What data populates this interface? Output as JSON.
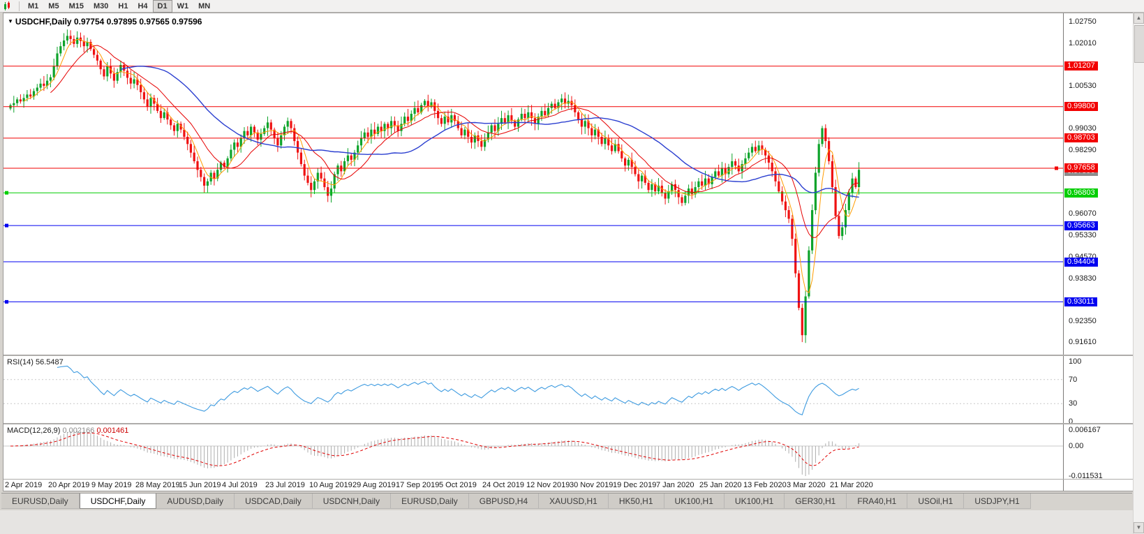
{
  "toolbar": {
    "timeframes": [
      {
        "label": "M1",
        "active": false
      },
      {
        "label": "M5",
        "active": false
      },
      {
        "label": "M15",
        "active": false
      },
      {
        "label": "M30",
        "active": false
      },
      {
        "label": "H1",
        "active": false
      },
      {
        "label": "H4",
        "active": false
      },
      {
        "label": "D1",
        "active": true
      },
      {
        "label": "W1",
        "active": false
      },
      {
        "label": "MN",
        "active": false
      }
    ]
  },
  "chart": {
    "symbol_period": "USDCHF,Daily",
    "ohlc": "0.97754 0.97895 0.97565 0.97596"
  },
  "price_axis": {
    "ticks": [
      {
        "value": 1.0275,
        "label": "1.02750"
      },
      {
        "value": 1.0201,
        "label": "1.02010"
      },
      {
        "value": 1.0053,
        "label": "1.00530"
      },
      {
        "value": 0.9903,
        "label": "0.99030"
      },
      {
        "value": 0.9829,
        "label": "0.98290"
      },
      {
        "value": 0.9607,
        "label": "0.96070"
      },
      {
        "value": 0.9533,
        "label": "0.95330"
      },
      {
        "value": 0.9457,
        "label": "0.94570"
      },
      {
        "value": 0.9383,
        "label": "0.93830"
      },
      {
        "value": 0.9235,
        "label": "0.92350"
      },
      {
        "value": 0.9161,
        "label": "0.91610"
      }
    ],
    "lines": [
      {
        "value": 1.01207,
        "label": "1.01207",
        "color": "#f20000"
      },
      {
        "value": 0.998,
        "label": "0.99800",
        "color": "#f20000"
      },
      {
        "value": 0.98703,
        "label": "0.98703",
        "color": "#f20000"
      },
      {
        "value": 0.97658,
        "label": "0.97658",
        "color": "#f20000",
        "handle": "right"
      },
      {
        "value": 0.96803,
        "label": "0.96803",
        "color": "#00ce00",
        "handle": "left"
      },
      {
        "value": 0.95663,
        "label": "0.95663",
        "color": "#0000f0",
        "handle": "left"
      },
      {
        "value": 0.94404,
        "label": "0.94404",
        "color": "#0000f0"
      },
      {
        "value": 0.93011,
        "label": "0.93011",
        "color": "#0000f0",
        "handle": "left"
      }
    ],
    "current": {
      "value": 0.97596,
      "label": "0.97596",
      "color": "#8c8c8c"
    }
  },
  "dates": [
    "2 Apr 2019",
    "20 Apr 2019",
    "9 May 2019",
    "28 May 2019",
    "15 Jun 2019",
    "4 Jul 2019",
    "23 Jul 2019",
    "10 Aug 2019",
    "29 Aug 2019",
    "17 Sep 2019",
    "5 Oct 2019",
    "24 Oct 2019",
    "12 Nov 2019",
    "30 Nov 2019",
    "19 Dec 2019",
    "7 Jan 2020",
    "25 Jan 2020",
    "13 Feb 2020",
    "3 Mar 2020",
    "21 Mar 2020"
  ],
  "indicators": {
    "rsi": {
      "label": "RSI(14)",
      "value": "56.5487",
      "axis": [
        {
          "value": 100,
          "label": "100"
        },
        {
          "value": 70,
          "label": "70"
        },
        {
          "value": 30,
          "label": "30"
        },
        {
          "value": 0,
          "label": "0"
        }
      ],
      "levels": [
        70,
        30
      ],
      "color": "#3e9be0"
    },
    "macd": {
      "label": "MACD(12,26,9)",
      "value_main": "0.002166",
      "value_signal": "0.001461",
      "axis_top": "0.006167",
      "axis_zero": "0.00",
      "axis_bottom": "-0.011531",
      "range": [
        -0.011531,
        0.006167
      ],
      "hist_color": "#adadad",
      "signal_color": "#e00000"
    }
  },
  "tabs": [
    {
      "label": "EURUSD,Daily",
      "active": false
    },
    {
      "label": "USDCHF,Daily",
      "active": true
    },
    {
      "label": "AUDUSD,Daily",
      "active": false
    },
    {
      "label": "USDCAD,Daily",
      "active": false
    },
    {
      "label": "USDCNH,Daily",
      "active": false
    },
    {
      "label": "EURUSD,Daily",
      "active": false
    },
    {
      "label": "GBPUSD,H4",
      "active": false
    },
    {
      "label": "XAUUSD,H1",
      "active": false
    },
    {
      "label": "HK50,H1",
      "active": false
    },
    {
      "label": "UK100,H1",
      "active": false
    },
    {
      "label": "UK100,H1",
      "active": false
    },
    {
      "label": "GER30,H1",
      "active": false
    },
    {
      "label": "FRA40,H1",
      "active": false
    },
    {
      "label": "USOil,H1",
      "active": false
    },
    {
      "label": "USDJPY,H1",
      "active": false
    }
  ],
  "chart_data": {
    "type": "candlestick",
    "title": "USDCHF,Daily",
    "y_range": [
      0.912,
      1.029
    ],
    "bars_per_date_label": 13,
    "closes": [
      0.9985,
      0.9992,
      1.0005,
      0.9998,
      1.001,
      1.0022,
      1.0015,
      1.0034,
      1.0046,
      1.006,
      1.0052,
      1.007,
      1.0082,
      1.012,
      1.0165,
      1.019,
      1.021,
      1.0226,
      1.0215,
      1.0198,
      1.022,
      1.0208,
      1.019,
      1.0205,
      1.018,
      1.016,
      1.014,
      1.011,
      1.0085,
      1.012,
      1.0095,
      1.007,
      1.01,
      1.0125,
      1.0105,
      1.008,
      1.006,
      1.0075,
      1.0055,
      1.003,
      1.0005,
      0.998,
      1.001,
      0.999,
      0.9965,
      0.994,
      0.996,
      0.9935,
      0.9915,
      0.9895,
      0.992,
      0.99,
      0.9875,
      0.985,
      0.982,
      0.979,
      0.976,
      0.9735,
      0.9705,
      0.972,
      0.975,
      0.973,
      0.976,
      0.9785,
      0.977,
      0.98,
      0.983,
      0.9855,
      0.984,
      0.987,
      0.9895,
      0.988,
      0.991,
      0.989,
      0.9865,
      0.9885,
      0.9905,
      0.9925,
      0.99,
      0.987,
      0.9845,
      0.988,
      0.991,
      0.993,
      0.9905,
      0.986,
      0.982,
      0.978,
      0.974,
      0.9715,
      0.969,
      0.972,
      0.975,
      0.973,
      0.97,
      0.967,
      0.9695,
      0.9745,
      0.9775,
      0.9755,
      0.979,
      0.981,
      0.9795,
      0.982,
      0.9845,
      0.987,
      0.989,
      0.9875,
      0.99,
      0.9885,
      0.991,
      0.9895,
      0.992,
      0.9905,
      0.993,
      0.9915,
      0.9895,
      0.992,
      0.9945,
      0.993,
      0.9955,
      0.9975,
      0.996,
      0.9985,
      1.0,
      0.998,
      0.9995,
      0.9965,
      0.994,
      0.992,
      0.9945,
      0.9925,
      0.995,
      0.993,
      0.9905,
      0.988,
      0.99,
      0.9875,
      0.9855,
      0.988,
      0.986,
      0.984,
      0.9865,
      0.989,
      0.9915,
      0.9895,
      0.992,
      0.994,
      0.9925,
      0.995,
      0.993,
      0.991,
      0.9935,
      0.9955,
      0.994,
      0.996,
      0.994,
      0.992,
      0.9945,
      0.9965,
      0.995,
      0.9975,
      0.999,
      0.9975,
      0.9995,
      1.0008,
      0.999,
      1.0,
      0.9985,
      0.996,
      0.9935,
      0.991,
      0.993,
      0.9905,
      0.988,
      0.99,
      0.9875,
      0.985,
      0.987,
      0.9845,
      0.9825,
      0.985,
      0.9825,
      0.98,
      0.9775,
      0.9795,
      0.977,
      0.9745,
      0.972,
      0.974,
      0.9715,
      0.969,
      0.971,
      0.9685,
      0.9705,
      0.968,
      0.966,
      0.9685,
      0.971,
      0.969,
      0.9665,
      0.9645,
      0.967,
      0.9695,
      0.9675,
      0.97,
      0.972,
      0.9705,
      0.973,
      0.971,
      0.9735,
      0.9755,
      0.974,
      0.9765,
      0.9745,
      0.977,
      0.979,
      0.9775,
      0.9755,
      0.978,
      0.98,
      0.982,
      0.984,
      0.9825,
      0.9845,
      0.983,
      0.981,
      0.9785,
      0.9755,
      0.972,
      0.9685,
      0.965,
      0.962,
      0.959,
      0.952,
      0.94,
      0.928,
      0.9185,
      0.932,
      0.948,
      0.962,
      0.975,
      0.985,
      0.9905,
      0.986,
      0.979,
      0.97,
      0.96,
      0.953,
      0.956,
      0.962,
      0.968,
      0.973,
      0.97,
      0.976
    ],
    "low_overrides": {
      "237": 0.9161
    },
    "high_overrides": {
      "17": 1.0248
    },
    "ma_periods": {
      "orange": 5,
      "red": 13,
      "blue": 34
    },
    "colors": {
      "up": "#0da32a",
      "down": "#ef1212",
      "ma_orange": "#ff9c00",
      "ma_red": "#e60000",
      "ma_blue": "#2b3fd0"
    }
  }
}
